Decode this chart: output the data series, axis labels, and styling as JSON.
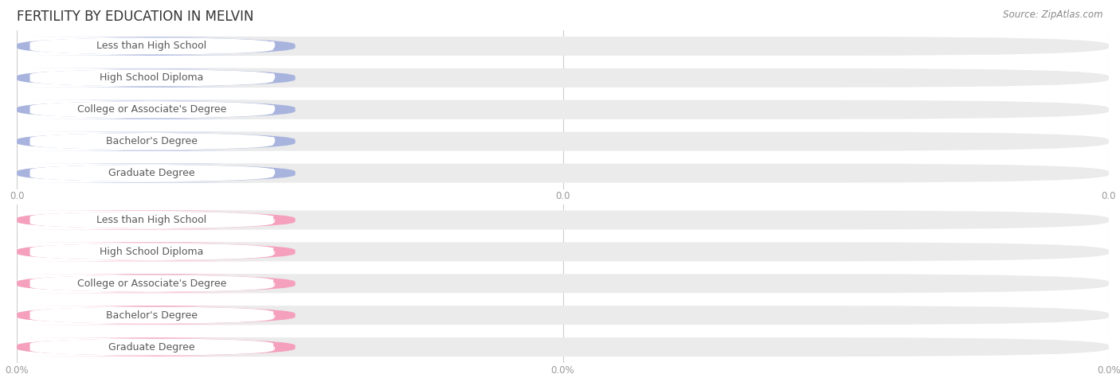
{
  "title": "FERTILITY BY EDUCATION IN MELVIN",
  "source": "Source: ZipAtlas.com",
  "categories": [
    "Less than High School",
    "High School Diploma",
    "College or Associate's Degree",
    "Bachelor's Degree",
    "Graduate Degree"
  ],
  "top_values": [
    0.0,
    0.0,
    0.0,
    0.0,
    0.0
  ],
  "bottom_values": [
    0.0,
    0.0,
    0.0,
    0.0,
    0.0
  ],
  "top_color": "#a8b4de",
  "bottom_color": "#f5a0bc",
  "bar_bg_color": "#ebebeb",
  "background_color": "#ffffff",
  "title_fontsize": 12,
  "label_fontsize": 9,
  "value_fontsize": 8.5,
  "tick_fontsize": 8.5,
  "source_fontsize": 8.5,
  "tick_color": "#999999",
  "label_text_color": "#5a5a5a",
  "value_text_color": "#ffffff"
}
